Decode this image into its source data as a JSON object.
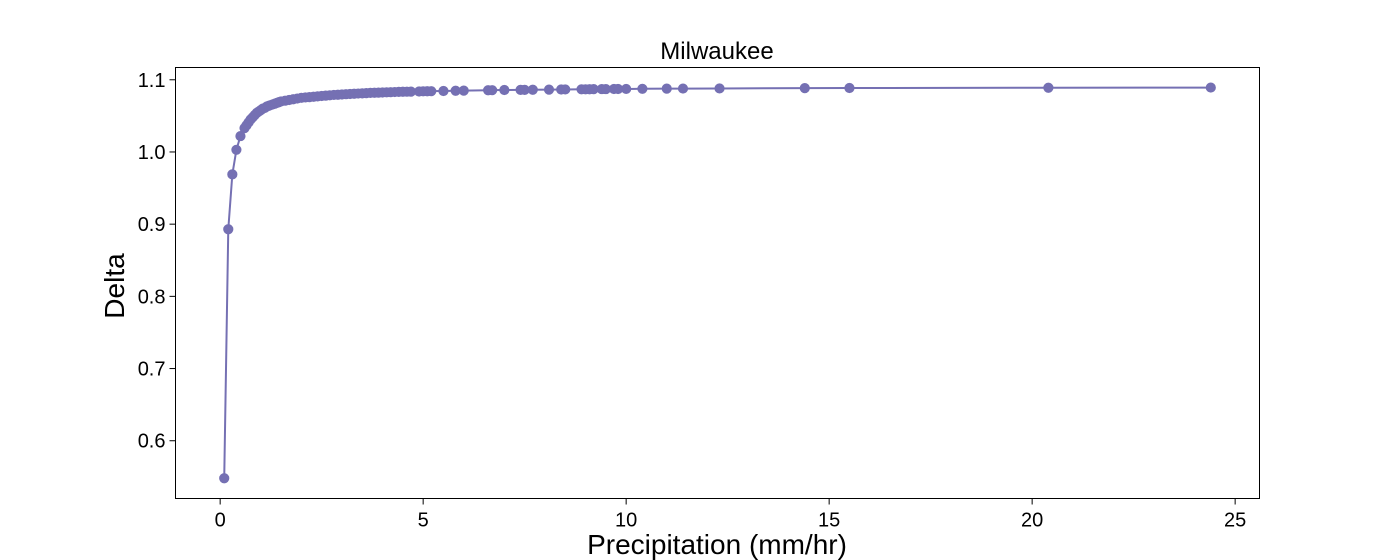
{
  "chart_data": {
    "type": "line",
    "title": "Milwaukee",
    "xlabel": "Precipitation (mm/hr)",
    "ylabel": "Delta",
    "xlim": [
      -1.1,
      25.6
    ],
    "ylim": [
      0.52,
      1.117
    ],
    "xticks": [
      0,
      5,
      10,
      15,
      20,
      25
    ],
    "yticks": [
      0.6,
      0.7,
      0.8,
      0.9,
      1.0,
      1.1
    ],
    "xtick_labels": [
      "0",
      "5",
      "10",
      "15",
      "20",
      "25"
    ],
    "ytick_labels": [
      "0.6",
      "0.7",
      "0.8",
      "0.9",
      "1.0",
      "1.1"
    ],
    "grid": false,
    "color": "#7570b3",
    "series": [
      {
        "x": [
          0.1,
          0.2,
          0.3,
          0.4,
          0.5,
          0.6,
          0.65,
          0.7,
          0.75,
          0.8,
          0.85,
          0.9,
          0.95,
          1.0,
          1.05,
          1.1,
          1.15,
          1.2,
          1.25,
          1.3,
          1.35,
          1.4,
          1.45,
          1.5,
          1.6,
          1.7,
          1.8,
          1.9,
          2.0,
          2.1,
          2.2,
          2.3,
          2.4,
          2.5,
          2.6,
          2.7,
          2.8,
          2.9,
          3.0,
          3.1,
          3.2,
          3.3,
          3.4,
          3.5,
          3.6,
          3.7,
          3.8,
          3.9,
          4.0,
          4.1,
          4.2,
          4.3,
          4.4,
          4.5,
          4.6,
          4.7,
          4.9,
          5.0,
          5.1,
          5.2,
          5.5,
          5.8,
          6.0,
          6.6,
          6.7,
          7.0,
          7.4,
          7.5,
          7.7,
          8.1,
          8.4,
          8.5,
          8.9,
          9.0,
          9.1,
          9.2,
          9.4,
          9.5,
          9.7,
          9.8,
          10.0,
          10.4,
          11.0,
          11.4,
          12.3,
          14.4,
          15.5,
          20.4,
          24.4
        ],
        "y": [
          0.548,
          0.893,
          0.969,
          1.003,
          1.022,
          1.033,
          1.037,
          1.041,
          1.045,
          1.048,
          1.051,
          1.054,
          1.056,
          1.058,
          1.06,
          1.061,
          1.063,
          1.064,
          1.065,
          1.066,
          1.067,
          1.068,
          1.069,
          1.07,
          1.071,
          1.072,
          1.073,
          1.074,
          1.075,
          1.0755,
          1.076,
          1.0765,
          1.077,
          1.0775,
          1.078,
          1.0785,
          1.079,
          1.0793,
          1.0796,
          1.08,
          1.0803,
          1.0806,
          1.0809,
          1.0812,
          1.0815,
          1.0818,
          1.082,
          1.0822,
          1.0824,
          1.0826,
          1.0828,
          1.083,
          1.0832,
          1.0834,
          1.0835,
          1.0836,
          1.0838,
          1.084,
          1.0841,
          1.0842,
          1.0845,
          1.0848,
          1.085,
          1.0855,
          1.0856,
          1.0858,
          1.086,
          1.086,
          1.0862,
          1.0864,
          1.0865,
          1.0866,
          1.0868,
          1.0868,
          1.0869,
          1.087,
          1.0871,
          1.0871,
          1.0872,
          1.0872,
          1.0873,
          1.0875,
          1.0877,
          1.0878,
          1.088,
          1.0884,
          1.0886,
          1.089,
          1.0892
        ]
      }
    ]
  }
}
